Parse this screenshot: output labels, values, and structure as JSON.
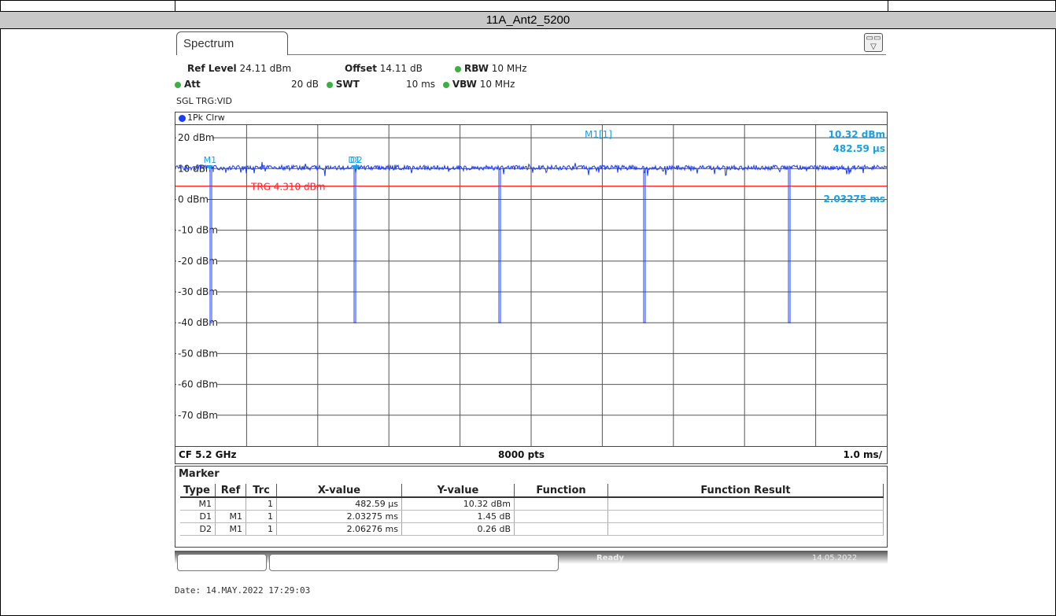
{
  "page": {
    "title": "11A_Ant2_5200",
    "date_footer": "Date: 14.MAY.2022  17:29:03"
  },
  "tab": {
    "label": "Spectrum"
  },
  "params": {
    "ref_level_label": "Ref Level",
    "ref_level_value": "24.11 dBm",
    "offset_label": "Offset",
    "offset_value": "14.11 dB",
    "rbw_label": "RBW",
    "rbw_value": "10 MHz",
    "att_label": "Att",
    "att_value": "20 dB",
    "swt_label": "SWT",
    "swt_value": "10 ms",
    "vbw_label": "VBW",
    "vbw_value": "10 MHz",
    "trigger": "SGL TRG:VID"
  },
  "trace_label": "1Pk Clrw",
  "chart_data": {
    "type": "line",
    "ylim": [
      -80,
      24.11
    ],
    "xlim": [
      0,
      10
    ],
    "ytick_labels": [
      "20 dBm",
      "10 dBm",
      "0 dBm",
      "-10 dBm",
      "-20 dBm",
      "-30 dBm",
      "-40 dBm",
      "-50 dBm",
      "-60 dBm",
      "-70 dBm"
    ],
    "ytick_values": [
      20,
      10,
      0,
      -10,
      -20,
      -30,
      -40,
      -50,
      -60,
      -70
    ],
    "xgrid_divisions": 10,
    "trace_level_dbm": 10.3,
    "dip_times_ms": [
      0.4826,
      2.5154,
      4.5481,
      6.5808,
      8.6136
    ],
    "dip_level_dbm": -40,
    "trigger_level": 4.31,
    "trigger_label": "TRG 4.310 dBm",
    "markers": [
      {
        "name": "M1",
        "x_ms": 0.4826
      },
      {
        "name": "D1",
        "x_ms": 2.5154
      },
      {
        "name": "D2",
        "x_ms": 2.5454
      }
    ],
    "marker_readout": {
      "label": "M1[1]",
      "level": "10.32 dBm",
      "time": "482.59 µs",
      "delta_time": "2.03275 ms"
    },
    "colors": {
      "trace": "#1a3cff",
      "trigger": "#ff2020",
      "marker": "#1aa0e6",
      "grid": "#555555"
    }
  },
  "footer": {
    "cf": "CF 5.2 GHz",
    "pts": "8000 pts",
    "scale": "1.0 ms/"
  },
  "marker_table": {
    "title": "Marker",
    "headers": [
      "Type",
      "Ref",
      "Trc",
      "X-value",
      "Y-value",
      "Function",
      "Function Result"
    ],
    "rows": [
      [
        "M1",
        "",
        "1",
        "482.59 µs",
        "10.32 dBm",
        "",
        ""
      ],
      [
        "D1",
        "M1",
        "1",
        "2.03275 ms",
        "1.45 dB",
        "",
        ""
      ],
      [
        "D2",
        "M1",
        "1",
        "2.06276 ms",
        "0.26 dB",
        "",
        ""
      ]
    ]
  },
  "status": {
    "ready": "Ready",
    "datetime": "14.05.2022"
  }
}
